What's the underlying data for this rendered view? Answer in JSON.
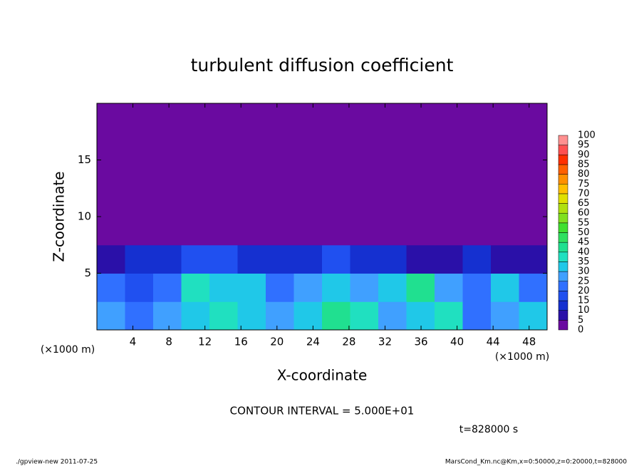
{
  "chart_data": {
    "type": "heatmap",
    "title": "turbulent diffusion coefficient",
    "x_label": "X-coordinate",
    "y_label": "Z-coordinate",
    "y_unit_label": "(×1000 m)",
    "x_unit_label": "(×1000 m)",
    "contour_interval_label": "CONTOUR INTERVAL = 5.000E+01",
    "time_label": "t=828000 s",
    "xlim": [
      0,
      50
    ],
    "ylim": [
      0,
      20
    ],
    "xticks": [
      4,
      8,
      12,
      16,
      20,
      24,
      28,
      32,
      36,
      40,
      44,
      48
    ],
    "yticks": [
      5,
      10,
      15
    ],
    "z": [
      [
        25,
        20,
        25,
        30,
        35,
        30,
        25,
        30,
        40,
        35,
        25,
        30,
        35,
        20,
        25,
        30
      ],
      [
        20,
        15,
        20,
        35,
        30,
        30,
        20,
        25,
        30,
        25,
        30,
        40,
        25,
        20,
        30,
        20
      ],
      [
        5,
        10,
        10,
        15,
        15,
        10,
        10,
        10,
        15,
        10,
        10,
        5,
        5,
        10,
        5,
        5
      ],
      [
        0,
        0,
        0,
        0,
        0,
        0,
        0,
        0,
        0,
        0,
        0,
        0,
        0,
        0,
        0,
        0
      ],
      [
        0,
        0,
        0,
        0,
        0,
        0,
        0,
        0,
        0,
        0,
        0,
        0,
        0,
        0,
        0,
        0
      ],
      [
        0,
        0,
        0,
        0,
        0,
        0,
        0,
        0,
        0,
        0,
        0,
        0,
        0,
        0,
        0,
        0
      ],
      [
        0,
        0,
        0,
        0,
        0,
        0,
        0,
        0,
        0,
        0,
        0,
        0,
        0,
        0,
        0,
        0
      ],
      [
        0,
        0,
        0,
        0,
        0,
        0,
        0,
        0,
        0,
        0,
        0,
        0,
        0,
        0,
        0,
        0
      ]
    ],
    "colorbar": {
      "levels": [
        0,
        5,
        10,
        15,
        20,
        25,
        30,
        35,
        40,
        45,
        50,
        55,
        60,
        65,
        70,
        75,
        80,
        85,
        90,
        95,
        100
      ],
      "colors": [
        "#6a0aa0",
        "#2a10a8",
        "#1530d0",
        "#2050f0",
        "#3070ff",
        "#40a0ff",
        "#20c8e8",
        "#20e0c0",
        "#20e090",
        "#30e060",
        "#40e030",
        "#80e020",
        "#b0e010",
        "#e0e000",
        "#ffc000",
        "#ff9000",
        "#ff6000",
        "#ff3000",
        "#ff5050",
        "#ff9090"
      ]
    }
  },
  "footer": {
    "left": "./gpview-new  2011-07-25",
    "right": "MarsCond_Km.nc@Km,x=0:50000,z=0:20000,t=828000"
  }
}
